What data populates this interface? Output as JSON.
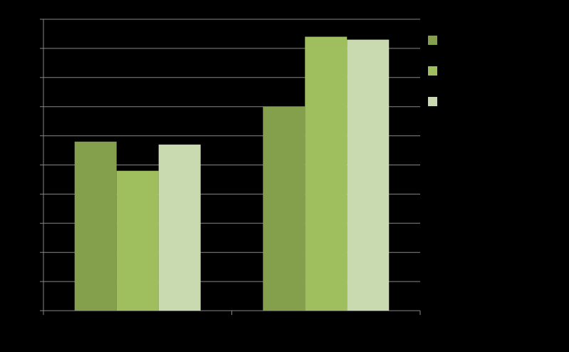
{
  "chart_data": {
    "type": "bar",
    "categories": [
      null,
      null
    ],
    "series": [
      {
        "color": "#84a04c",
        "values": [
          5.8,
          7.0
        ]
      },
      {
        "color": "#9fbe5e",
        "values": [
          4.8,
          9.4
        ]
      },
      {
        "color": "#c9d9b0",
        "values": [
          5.7,
          9.3
        ]
      }
    ],
    "ylim": [
      0,
      10
    ],
    "yticks": [
      0,
      1,
      2,
      3,
      4,
      5,
      6,
      7,
      8,
      9,
      10
    ],
    "grid": true
  }
}
